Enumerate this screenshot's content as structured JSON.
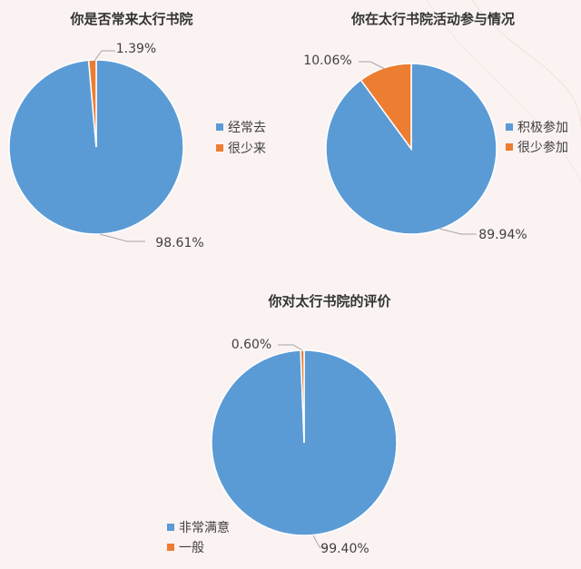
{
  "colors": {
    "blue": "#5b9bd5",
    "orange": "#ed7d31"
  },
  "chart_data": [
    {
      "type": "pie",
      "title": "你是否常来太行书院",
      "categories": [
        "经常去",
        "很少来"
      ],
      "values": [
        98.61,
        1.39
      ],
      "value_labels": [
        "98.61%",
        "1.39%"
      ],
      "legend_position": "right"
    },
    {
      "type": "pie",
      "title": "你在太行书院活动参与情况",
      "categories": [
        "积极参加",
        "很少参加"
      ],
      "values": [
        89.94,
        10.06
      ],
      "value_labels": [
        "89.94%",
        "10.06%"
      ],
      "legend_position": "right"
    },
    {
      "type": "pie",
      "title": "你对太行书院的评价",
      "categories": [
        "非常满意",
        "一般"
      ],
      "values": [
        99.4,
        0.6
      ],
      "value_labels": [
        "99.40%",
        "0.60%"
      ],
      "legend_position": "bottom-left"
    }
  ]
}
